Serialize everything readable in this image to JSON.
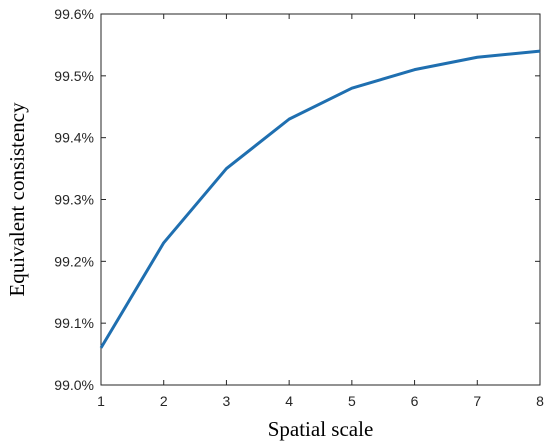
{
  "chart_data": {
    "type": "line",
    "xlabel": "Spatial scale",
    "ylabel": "Equivalent consistency",
    "xlim": [
      1,
      8
    ],
    "ylim": [
      99.0,
      99.6
    ],
    "x_ticks": [
      1,
      2,
      3,
      4,
      5,
      6,
      7,
      8
    ],
    "x_tick_labels": [
      "1",
      "2",
      "3",
      "4",
      "5",
      "6",
      "7",
      "8"
    ],
    "y_ticks": [
      99.0,
      99.1,
      99.2,
      99.3,
      99.4,
      99.5,
      99.6
    ],
    "y_tick_labels": [
      "99.0%",
      "99.1%",
      "99.2%",
      "99.3%",
      "99.4%",
      "99.5%",
      "99.6%"
    ],
    "grid": false,
    "legend": "none",
    "series": [
      {
        "x": [
          1,
          2,
          3,
          4,
          5,
          6,
          7,
          8
        ],
        "values": [
          99.06,
          99.23,
          99.35,
          99.43,
          99.48,
          99.51,
          99.53,
          99.54
        ],
        "color": "#1f6fb0"
      }
    ]
  }
}
